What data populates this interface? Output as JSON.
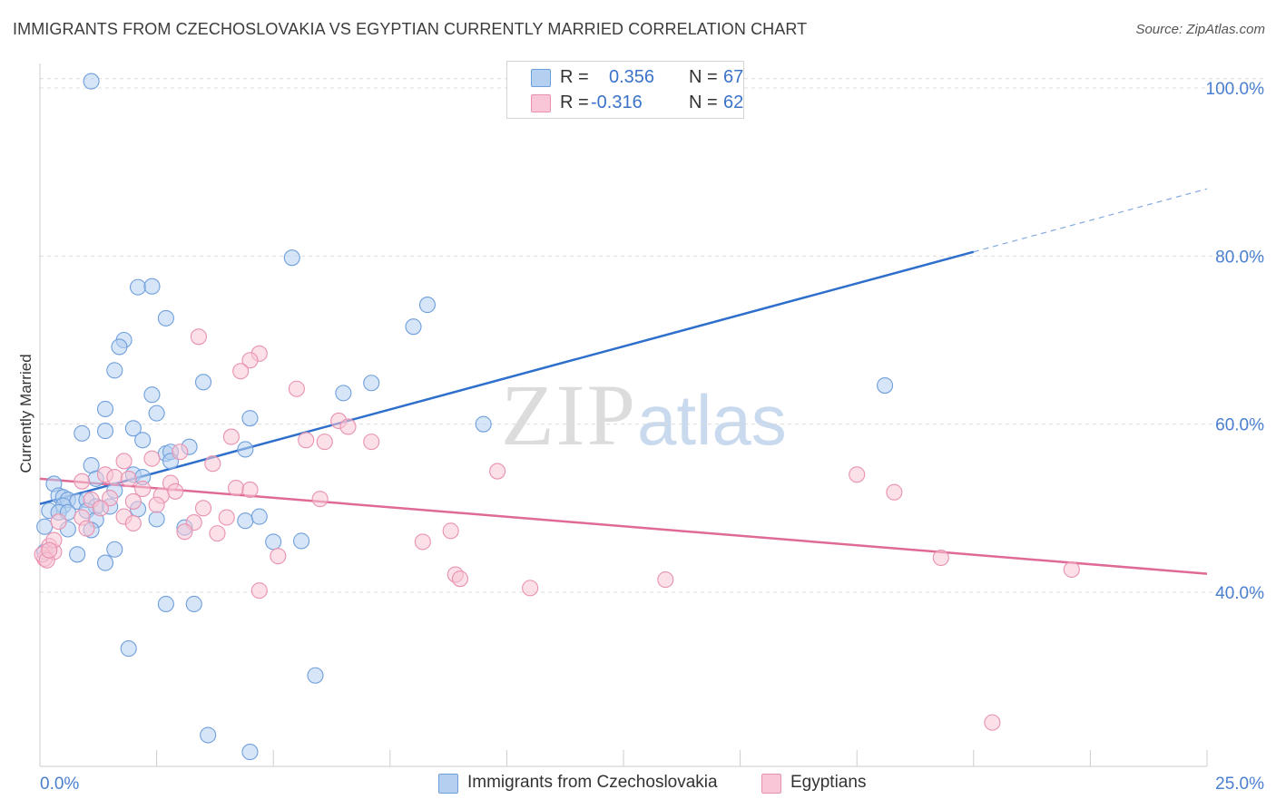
{
  "header": {
    "title": "IMMIGRANTS FROM CZECHOSLOVAKIA VS EGYPTIAN CURRENTLY MARRIED CORRELATION CHART",
    "source": "Source: ZipAtlas.com"
  },
  "watermark": {
    "zip": "ZIP",
    "atlas": "atlas"
  },
  "legend": {
    "rows": [
      {
        "r_label": "R =",
        "r_value": "0.356",
        "n_label": "N =",
        "n_value": "67"
      },
      {
        "r_label": "R =",
        "r_value": "-0.316",
        "n_label": "N =",
        "n_value": "62"
      }
    ]
  },
  "bottom_legend": [
    "Immigrants from Czechoslovakia",
    "Egyptians"
  ],
  "colors": {
    "blue_fill": "#b5cff0",
    "blue_stroke": "#6f9fdc",
    "blue_line": "#2f6fcc",
    "pink_fill": "#f8c6d6",
    "pink_stroke": "#e991b0",
    "pink_line": "#e06a96",
    "tick": "#4a7fd0",
    "grid": "#dcdcdc"
  },
  "chart_data": {
    "type": "scatter",
    "title": "IMMIGRANTS FROM CZECHOSLOVAKIA VS EGYPTIAN CURRENTLY MARRIED CORRELATION CHART",
    "xlabel": "",
    "ylabel": "Currently Married",
    "xlim": [
      0,
      25
    ],
    "ylim": [
      20,
      101
    ],
    "x_tick_labels": [
      {
        "value": 0,
        "label": "0.0%"
      },
      {
        "value": 25,
        "label": "25.0%"
      }
    ],
    "y_tick_labels": [
      {
        "value": 100,
        "label": "100.0%"
      },
      {
        "value": 80,
        "label": "80.0%"
      },
      {
        "value": 60,
        "label": "60.0%"
      },
      {
        "value": 40,
        "label": "40.0%"
      }
    ],
    "grid": true,
    "legend_position": "top-center",
    "series": [
      {
        "name": "Immigrants from Czechoslovakia",
        "trend": {
          "x": [
            0,
            20
          ],
          "y": [
            50.5,
            80.5
          ],
          "dashed_extension_to": [
            25,
            88.0
          ]
        },
        "points": [
          [
            1.1,
            100.8
          ],
          [
            5.4,
            79.8
          ],
          [
            2.1,
            76.3
          ],
          [
            2.4,
            76.4
          ],
          [
            8.3,
            74.2
          ],
          [
            2.7,
            72.6
          ],
          [
            8.0,
            71.6
          ],
          [
            1.8,
            70.0
          ],
          [
            1.7,
            69.2
          ],
          [
            1.6,
            66.4
          ],
          [
            3.5,
            65.0
          ],
          [
            7.1,
            64.9
          ],
          [
            6.5,
            63.7
          ],
          [
            18.1,
            64.6
          ],
          [
            2.4,
            63.5
          ],
          [
            1.4,
            61.8
          ],
          [
            2.5,
            61.3
          ],
          [
            4.5,
            60.7
          ],
          [
            9.5,
            60.0
          ],
          [
            1.4,
            59.2
          ],
          [
            0.9,
            58.9
          ],
          [
            2.0,
            59.5
          ],
          [
            2.2,
            58.1
          ],
          [
            3.2,
            57.3
          ],
          [
            4.4,
            57.0
          ],
          [
            2.7,
            56.5
          ],
          [
            2.8,
            56.7
          ],
          [
            2.8,
            55.6
          ],
          [
            1.1,
            55.1
          ],
          [
            2.0,
            54.0
          ],
          [
            2.2,
            53.7
          ],
          [
            1.2,
            53.5
          ],
          [
            0.3,
            52.9
          ],
          [
            1.6,
            52.1
          ],
          [
            0.4,
            51.5
          ],
          [
            0.5,
            51.3
          ],
          [
            0.6,
            51.0
          ],
          [
            0.8,
            50.8
          ],
          [
            1.0,
            51.0
          ],
          [
            0.5,
            50.3
          ],
          [
            1.2,
            50.2
          ],
          [
            1.5,
            50.2
          ],
          [
            2.1,
            49.9
          ],
          [
            0.2,
            49.7
          ],
          [
            0.4,
            49.5
          ],
          [
            0.6,
            49.5
          ],
          [
            1.0,
            49.7
          ],
          [
            1.2,
            48.6
          ],
          [
            2.5,
            48.7
          ],
          [
            4.4,
            48.5
          ],
          [
            3.1,
            47.7
          ],
          [
            0.6,
            47.5
          ],
          [
            1.1,
            47.4
          ],
          [
            0.1,
            47.8
          ],
          [
            5.6,
            46.1
          ],
          [
            1.6,
            45.1
          ],
          [
            0.8,
            44.5
          ],
          [
            1.4,
            43.5
          ],
          [
            0.1,
            44.8
          ],
          [
            2.7,
            38.6
          ],
          [
            3.3,
            38.6
          ],
          [
            1.9,
            33.3
          ],
          [
            5.9,
            30.1
          ],
          [
            3.6,
            23.0
          ],
          [
            4.5,
            21.0
          ],
          [
            4.7,
            49.0
          ],
          [
            5.0,
            46.0
          ]
        ]
      },
      {
        "name": "Egyptians",
        "trend": {
          "x": [
            0,
            25
          ],
          "y": [
            53.5,
            42.2
          ]
        },
        "points": [
          [
            3.4,
            70.4
          ],
          [
            4.7,
            68.4
          ],
          [
            4.5,
            67.6
          ],
          [
            4.3,
            66.3
          ],
          [
            5.5,
            64.2
          ],
          [
            6.4,
            60.4
          ],
          [
            6.6,
            59.7
          ],
          [
            4.1,
            58.5
          ],
          [
            5.7,
            58.1
          ],
          [
            6.1,
            57.9
          ],
          [
            7.1,
            57.9
          ],
          [
            3.0,
            56.7
          ],
          [
            2.4,
            55.9
          ],
          [
            1.8,
            55.6
          ],
          [
            3.7,
            55.3
          ],
          [
            9.8,
            54.4
          ],
          [
            17.5,
            54.0
          ],
          [
            1.4,
            54.0
          ],
          [
            1.6,
            53.7
          ],
          [
            1.9,
            53.5
          ],
          [
            0.9,
            53.2
          ],
          [
            2.8,
            53.0
          ],
          [
            4.2,
            52.4
          ],
          [
            4.5,
            52.2
          ],
          [
            2.2,
            52.3
          ],
          [
            2.9,
            52.0
          ],
          [
            2.6,
            51.5
          ],
          [
            1.5,
            51.2
          ],
          [
            1.1,
            51.0
          ],
          [
            6.0,
            51.1
          ],
          [
            18.3,
            51.9
          ],
          [
            2.0,
            50.8
          ],
          [
            2.5,
            50.4
          ],
          [
            1.3,
            50.0
          ],
          [
            3.5,
            50.0
          ],
          [
            0.9,
            48.9
          ],
          [
            1.8,
            49.0
          ],
          [
            4.0,
            48.9
          ],
          [
            3.3,
            48.3
          ],
          [
            2.0,
            48.2
          ],
          [
            0.4,
            48.4
          ],
          [
            1.0,
            47.6
          ],
          [
            3.1,
            47.2
          ],
          [
            3.8,
            47.0
          ],
          [
            8.8,
            47.3
          ],
          [
            8.2,
            46.0
          ],
          [
            0.2,
            45.5
          ],
          [
            0.3,
            44.8
          ],
          [
            0.1,
            44.0
          ],
          [
            5.1,
            44.3
          ],
          [
            19.3,
            44.1
          ],
          [
            0.05,
            44.5
          ],
          [
            8.9,
            42.1
          ],
          [
            9.0,
            41.6
          ],
          [
            13.4,
            41.5
          ],
          [
            22.1,
            42.7
          ],
          [
            10.5,
            40.5
          ],
          [
            4.7,
            40.2
          ],
          [
            20.4,
            24.5
          ],
          [
            0.15,
            43.8
          ],
          [
            0.3,
            46.2
          ],
          [
            0.2,
            45.0
          ]
        ]
      }
    ]
  }
}
